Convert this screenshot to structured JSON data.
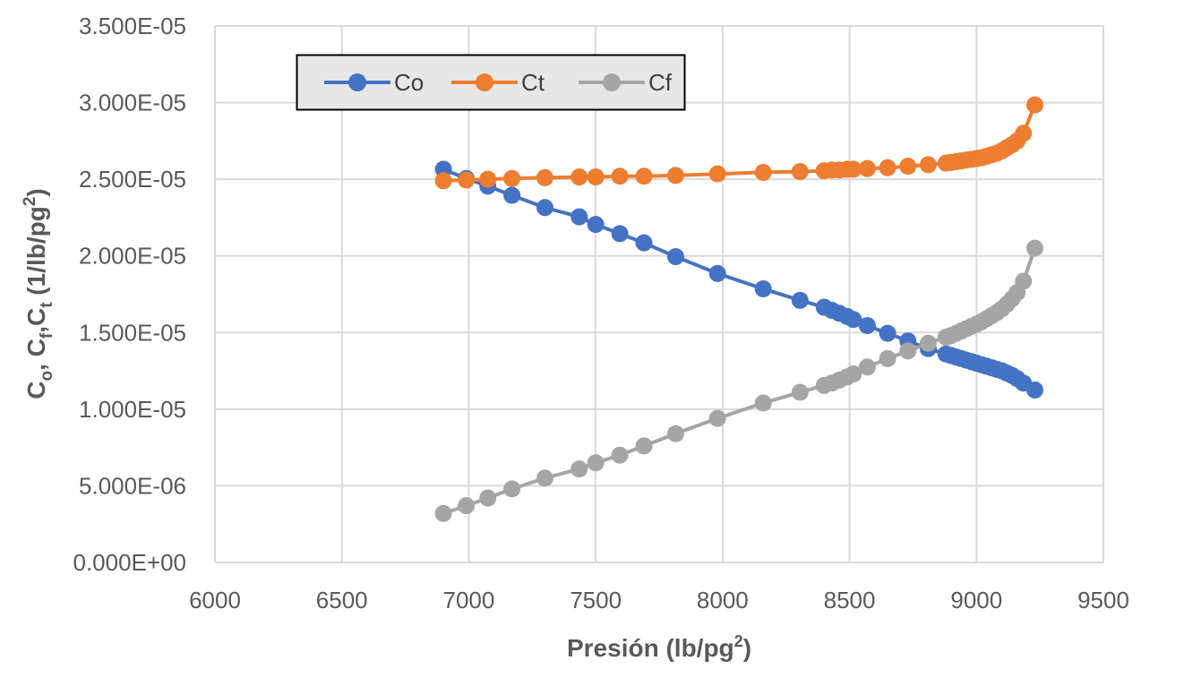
{
  "chart_data": {
    "type": "line",
    "xlabel": {
      "main": "Presión (lb/pg",
      "sup": "2",
      "end": ")"
    },
    "ylabel": {
      "parts": [
        {
          "t": "C",
          "k": "n"
        },
        {
          "t": "o",
          "k": "sub"
        },
        {
          "t": ", C",
          "k": "n"
        },
        {
          "t": "f",
          "k": "sub"
        },
        {
          "t": ",C",
          "k": "n"
        },
        {
          "t": "t",
          "k": "sub"
        },
        {
          "t": " (1/lb/pg",
          "k": "n"
        },
        {
          "t": "2",
          "k": "sup"
        },
        {
          "t": ")",
          "k": "n"
        }
      ]
    },
    "xlim": [
      6000,
      9500
    ],
    "ylim": [
      0,
      3.5e-05
    ],
    "x_ticks": [
      6000,
      6500,
      7000,
      7500,
      8000,
      8500,
      9000,
      9500
    ],
    "x_tick_labels": [
      "6000",
      "6500",
      "7000",
      "7500",
      "8000",
      "8500",
      "9000",
      "9500"
    ],
    "y_ticks": [
      0,
      5e-06,
      1e-05,
      1.5e-05,
      2e-05,
      2.5e-05,
      3e-05,
      3.5e-05
    ],
    "y_tick_labels": [
      "0.000E+00",
      "5.000E-06",
      "1.000E-05",
      "1.500E-05",
      "2.000E-05",
      "2.500E-05",
      "3.000E-05",
      "3.500E-05"
    ],
    "grid": true,
    "legend_position": "top-left",
    "series": [
      {
        "name": "Co",
        "color": "#4472C4",
        "x": [
          6900,
          6990,
          7075,
          7170,
          7300,
          7435,
          7500,
          7595,
          7690,
          7815,
          7980,
          8160,
          8305,
          8400,
          8430,
          8460,
          8490,
          8515,
          8570,
          8650,
          8730,
          8810,
          8880,
          8900,
          8920,
          8940,
          8960,
          8980,
          9000,
          9020,
          9040,
          9060,
          9080,
          9100,
          9120,
          9140,
          9160,
          9185,
          9230
        ],
        "y": [
          2.565e-05,
          2.505e-05,
          2.455e-05,
          2.395e-05,
          2.315e-05,
          2.255e-05,
          2.205e-05,
          2.145e-05,
          2.085e-05,
          1.995e-05,
          1.885e-05,
          1.785e-05,
          1.71e-05,
          1.665e-05,
          1.645e-05,
          1.625e-05,
          1.605e-05,
          1.585e-05,
          1.545e-05,
          1.495e-05,
          1.445e-05,
          1.395e-05,
          1.36e-05,
          1.35e-05,
          1.34e-05,
          1.33e-05,
          1.32e-05,
          1.31e-05,
          1.3e-05,
          1.29e-05,
          1.28e-05,
          1.27e-05,
          1.26e-05,
          1.25e-05,
          1.235e-05,
          1.22e-05,
          1.2e-05,
          1.17e-05,
          1.125e-05
        ]
      },
      {
        "name": "Ct",
        "color": "#ED7D31",
        "x": [
          6900,
          6990,
          7075,
          7170,
          7300,
          7435,
          7500,
          7595,
          7690,
          7815,
          7980,
          8160,
          8305,
          8400,
          8430,
          8460,
          8490,
          8515,
          8570,
          8650,
          8730,
          8810,
          8880,
          8900,
          8920,
          8940,
          8960,
          8980,
          9000,
          9020,
          9040,
          9060,
          9080,
          9100,
          9120,
          9140,
          9160,
          9185,
          9230
        ],
        "y": [
          2.49e-05,
          2.495e-05,
          2.5e-05,
          2.505e-05,
          2.51e-05,
          2.515e-05,
          2.515e-05,
          2.52e-05,
          2.52e-05,
          2.525e-05,
          2.535e-05,
          2.545e-05,
          2.55e-05,
          2.555e-05,
          2.56e-05,
          2.56e-05,
          2.565e-05,
          2.565e-05,
          2.57e-05,
          2.575e-05,
          2.585e-05,
          2.595e-05,
          2.605e-05,
          2.61e-05,
          2.615e-05,
          2.62e-05,
          2.625e-05,
          2.63e-05,
          2.635e-05,
          2.64e-05,
          2.65e-05,
          2.66e-05,
          2.67e-05,
          2.685e-05,
          2.705e-05,
          2.725e-05,
          2.75e-05,
          2.8e-05,
          2.985e-05
        ]
      },
      {
        "name": "Cf",
        "color": "#A5A5A5",
        "x": [
          6900,
          6990,
          7075,
          7170,
          7300,
          7435,
          7500,
          7595,
          7690,
          7815,
          7980,
          8160,
          8305,
          8400,
          8430,
          8460,
          8490,
          8515,
          8570,
          8650,
          8730,
          8810,
          8880,
          8900,
          8920,
          8940,
          8960,
          8980,
          9000,
          9020,
          9040,
          9060,
          9080,
          9100,
          9120,
          9140,
          9160,
          9185,
          9230
        ],
        "y": [
          3.2e-06,
          3.7e-06,
          4.2e-06,
          4.8e-06,
          5.5e-06,
          6.1e-06,
          6.5e-06,
          7e-06,
          7.6e-06,
          8.4e-06,
          9.4e-06,
          1.04e-05,
          1.11e-05,
          1.155e-05,
          1.17e-05,
          1.19e-05,
          1.21e-05,
          1.23e-05,
          1.275e-05,
          1.33e-05,
          1.38e-05,
          1.43e-05,
          1.47e-05,
          1.48e-05,
          1.495e-05,
          1.51e-05,
          1.525e-05,
          1.54e-05,
          1.555e-05,
          1.57e-05,
          1.59e-05,
          1.61e-05,
          1.63e-05,
          1.655e-05,
          1.685e-05,
          1.72e-05,
          1.76e-05,
          1.835e-05,
          2.05e-05
        ]
      }
    ]
  }
}
